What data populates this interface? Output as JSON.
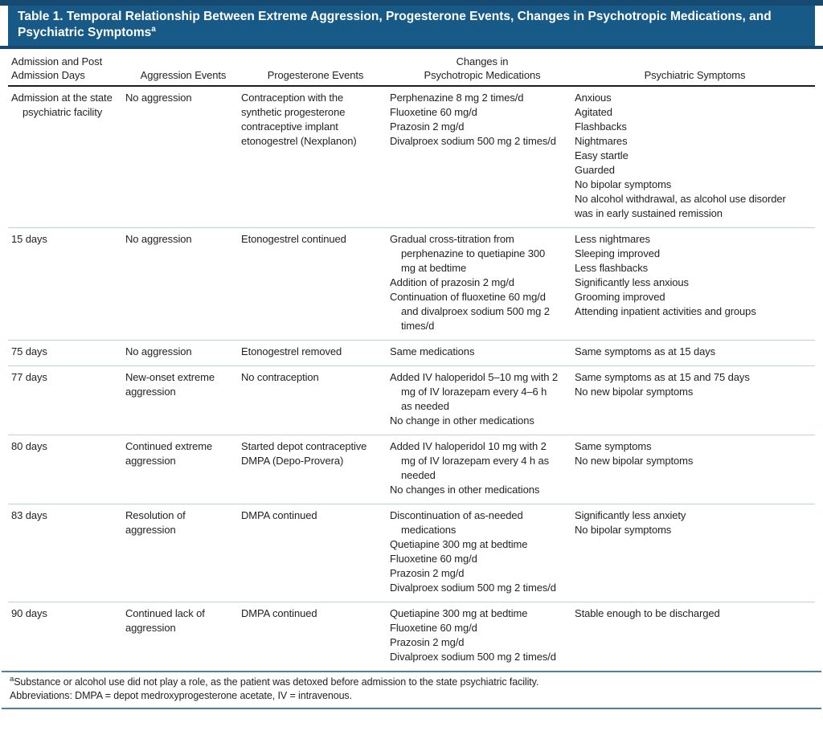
{
  "colors": {
    "banner_background": "#175a87",
    "navy_rule": "#164a70",
    "header_rule": "#1d1d1b",
    "row_divider": "#b9d2e4",
    "footer_rule": "#4d80a1",
    "text": "#231f20",
    "title_text": "#ffffff"
  },
  "table": {
    "title": {
      "text": "Table 1. Temporal Relationship Between Extreme Aggression, Progesterone Events, Changes in Psychotropic Medications, and Psychiatric Symptoms",
      "footnote_marker": "a"
    },
    "columns": [
      {
        "id": "days",
        "label": "Admission and Post\nAdmission Days"
      },
      {
        "id": "aggression",
        "label": "Aggression Events"
      },
      {
        "id": "progesterone",
        "label": "Progesterone Events"
      },
      {
        "id": "medications",
        "label": "Changes in\nPsychotropic Medications"
      },
      {
        "id": "symptoms",
        "label": "Psychiatric Symptoms"
      }
    ],
    "rows": [
      {
        "days": "Admission at the state psychiatric facility",
        "aggression": [
          "No aggression"
        ],
        "progesterone": [
          "Contraception with the synthetic progesterone contraceptive implant etonogestrel (Nexplanon)"
        ],
        "medications": [
          "Perphenazine 8 mg 2 times/d",
          "Fluoxetine 60 mg/d",
          "Prazosin 2 mg/d",
          "Divalproex sodium 500 mg 2 times/d"
        ],
        "symptoms": [
          "Anxious",
          "Agitated",
          "Flashbacks",
          "Nightmares",
          "Easy startle",
          "Guarded",
          "No bipolar symptoms",
          "No alcohol withdrawal, as alcohol use disorder was in early sustained remission"
        ]
      },
      {
        "days": "15 days",
        "aggression": [
          "No aggression"
        ],
        "progesterone": [
          "Etonogestrel continued"
        ],
        "medications": [
          "Gradual cross-titration from perphenazine to quetiapine 300 mg at bedtime",
          "Addition of prazosin 2 mg/d",
          "Continuation of fluoxetine 60 mg/d and divalproex sodium 500 mg 2 times/d"
        ],
        "symptoms": [
          "Less nightmares",
          "Sleeping improved",
          "Less flashbacks",
          "Significantly less anxious",
          "Grooming improved",
          "Attending inpatient activities and groups"
        ]
      },
      {
        "days": "75 days",
        "aggression": [
          "No aggression"
        ],
        "progesterone": [
          "Etonogestrel removed"
        ],
        "medications": [
          "Same medications"
        ],
        "symptoms": [
          "Same symptoms as at 15 days"
        ]
      },
      {
        "days": "77 days",
        "aggression": [
          "New-onset extreme aggression"
        ],
        "progesterone": [
          "No contraception"
        ],
        "medications": [
          "Added IV haloperidol 5–10 mg with 2 mg of IV lorazepam every 4–6 h as needed",
          "No change in other medications"
        ],
        "symptoms": [
          "Same symptoms as at 15 and 75 days",
          "No new bipolar symptoms"
        ]
      },
      {
        "days": "80 days",
        "aggression": [
          "Continued extreme aggression"
        ],
        "progesterone": [
          "Started depot contraceptive DMPA (Depo-Provera)"
        ],
        "medications": [
          "Added IV haloperidol 10 mg with 2 mg of IV lorazepam every 4 h as needed",
          "No changes in other medications"
        ],
        "symptoms": [
          "Same symptoms",
          "No new bipolar symptoms"
        ]
      },
      {
        "days": "83 days",
        "aggression": [
          "Resolution of aggression"
        ],
        "progesterone": [
          "DMPA continued"
        ],
        "medications": [
          "Discontinuation of as-needed medications",
          "Quetiapine 300 mg at bedtime",
          "Fluoxetine 60 mg/d",
          "Prazosin 2 mg/d",
          "Divalproex sodium 500 mg 2 times/d"
        ],
        "symptoms": [
          "Significantly less anxiety",
          "No bipolar symptoms"
        ]
      },
      {
        "days": "90 days",
        "aggression": [
          "Continued lack of aggression"
        ],
        "progesterone": [
          "DMPA continued"
        ],
        "medications": [
          "Quetiapine 300 mg at bedtime",
          "Fluoxetine 60 mg/d",
          "Prazosin 2 mg/d",
          "Divalproex sodium 500 mg 2 times/d"
        ],
        "medications_hang": false,
        "symptoms": [
          "Stable enough to be discharged"
        ]
      }
    ],
    "footnotes": {
      "marker": "a",
      "note": "Substance or alcohol use did not play a role, as the patient was detoxed before admission to the state psychiatric facility.",
      "abbreviations": "Abbreviations: DMPA = depot medroxyprogesterone acetate, IV = intravenous."
    }
  }
}
